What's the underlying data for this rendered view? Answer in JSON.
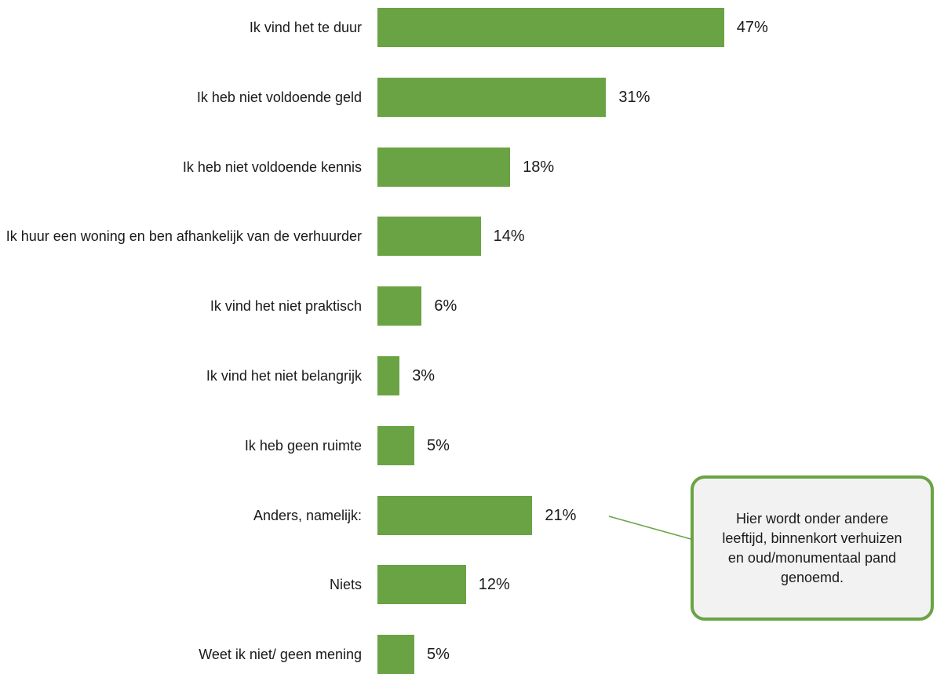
{
  "chart_data": {
    "type": "bar",
    "orientation": "horizontal",
    "categories": [
      "Ik vind het te duur",
      "Ik heb niet voldoende geld",
      "Ik heb niet voldoende kennis",
      "Ik huur een woning en ben afhankelijk van de verhuurder",
      "Ik vind het niet praktisch",
      "Ik vind het niet belangrijk",
      "Ik heb geen ruimte",
      "Anders, namelijk:",
      "Niets",
      "Weet ik niet/ geen mening"
    ],
    "values": [
      47,
      31,
      18,
      14,
      6,
      3,
      5,
      21,
      12,
      5
    ],
    "value_labels": [
      "47%",
      "31%",
      "18%",
      "14%",
      "6%",
      "3%",
      "5%",
      "21%",
      "12%",
      "5%"
    ],
    "unit": "%",
    "title": "",
    "xlabel": "",
    "ylabel": "",
    "grid": false,
    "bar_color": "#6aa344",
    "annotation": {
      "text": "Hier wordt onder andere leeftijd, binnenkort verhuizen en oud/monumentaal pand genoemd.",
      "target_category": "Anders, namelijk:",
      "border_color": "#6aa344",
      "fill_color": "#f2f2f2"
    }
  }
}
